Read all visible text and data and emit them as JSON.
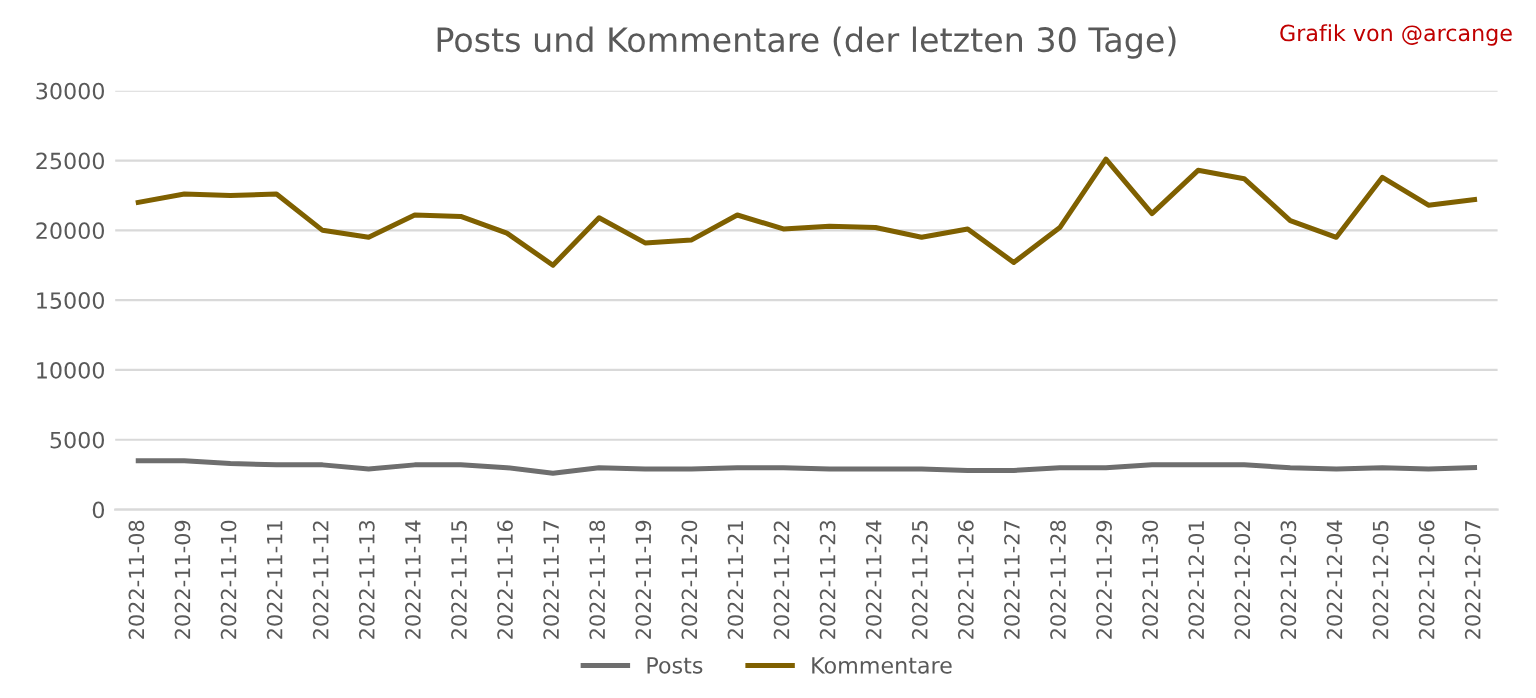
{
  "chart_data": {
    "type": "line",
    "title": "Posts und Kommentare (der letzten 30 Tage)",
    "annotations": [
      "Grafik von @arcange"
    ],
    "categories": [
      "2022-11-08",
      "2022-11-09",
      "2022-11-10",
      "2022-11-11",
      "2022-11-12",
      "2022-11-13",
      "2022-11-14",
      "2022-11-15",
      "2022-11-16",
      "2022-11-17",
      "2022-11-18",
      "2022-11-19",
      "2022-11-20",
      "2022-11-21",
      "2022-11-22",
      "2022-11-23",
      "2022-11-24",
      "2022-11-25",
      "2022-11-26",
      "2022-11-27",
      "2022-11-28",
      "2022-11-29",
      "2022-11-30",
      "2022-12-01",
      "2022-12-02",
      "2022-12-03",
      "2022-12-04",
      "2022-12-05",
      "2022-12-06",
      "2022-12-07"
    ],
    "series": [
      {
        "name": "Posts",
        "color": "#6e6e6e",
        "values": [
          3500,
          3500,
          3300,
          3200,
          3200,
          2900,
          3200,
          3200,
          3000,
          2600,
          3000,
          2900,
          2900,
          3000,
          3000,
          2900,
          2900,
          2900,
          2800,
          2800,
          3000,
          3000,
          3200,
          3200,
          3200,
          3000,
          2900,
          3000,
          2900,
          3000
        ]
      },
      {
        "name": "Kommentare",
        "color": "#7f6000",
        "values": [
          22000,
          22600,
          22500,
          22600,
          20000,
          19500,
          21100,
          21000,
          19800,
          17500,
          20900,
          19100,
          19300,
          21100,
          20100,
          20300,
          20200,
          19500,
          20100,
          17700,
          20200,
          25100,
          21200,
          24300,
          23700,
          20700,
          19500,
          23800,
          21800,
          22200
        ]
      }
    ],
    "ylim": [
      0,
      30000
    ],
    "yticks": [
      0,
      5000,
      10000,
      15000,
      20000,
      25000,
      30000
    ],
    "grid": "y",
    "legend": "bottom",
    "marker": "none",
    "line_style": "solid"
  }
}
